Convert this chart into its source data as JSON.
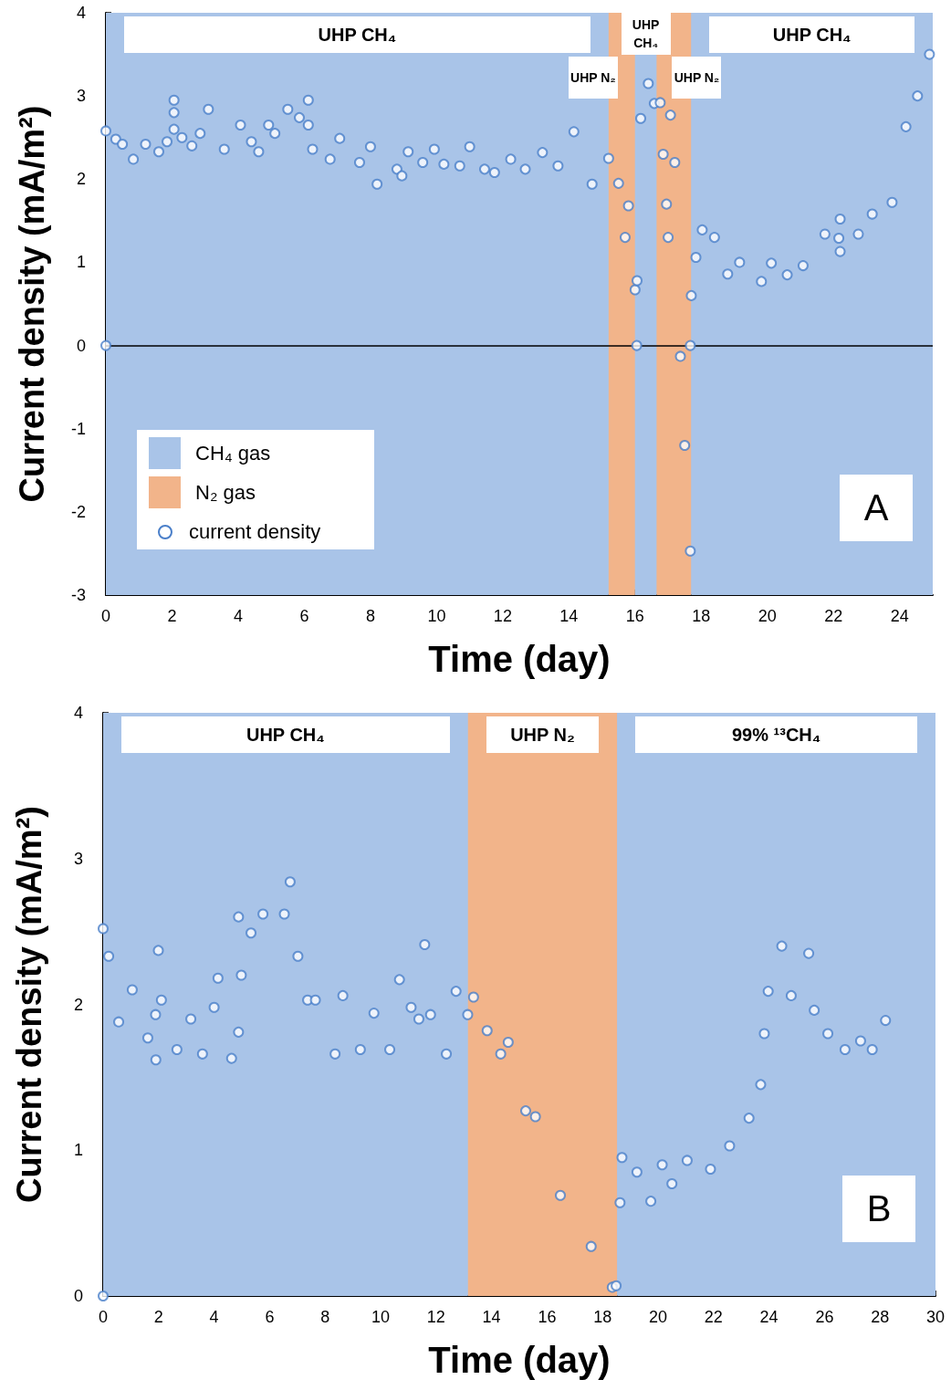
{
  "chart_data": [
    {
      "type": "scatter",
      "xlabel": "Time (day)",
      "ylabel": "Current density (mA/m²)",
      "xlim": [
        0,
        25
      ],
      "xticks": [
        0,
        2,
        4,
        6,
        8,
        10,
        12,
        14,
        16,
        18,
        20,
        22,
        24
      ],
      "ylim": [
        -3,
        4
      ],
      "yticks": [
        -3,
        {
          "value": -2.5,
          "label": null
        },
        -2,
        {
          "value": -1.5,
          "label": null
        },
        -1,
        {
          "value": -0.5,
          "label": null
        },
        0,
        {
          "value": 0.5,
          "label": null
        },
        1,
        {
          "value": 1.5,
          "label": null
        },
        2,
        {
          "value": 2.5,
          "label": null
        },
        3,
        {
          "value": 3.5,
          "label": null
        },
        4
      ],
      "grid": false,
      "legend": "bottom left",
      "marker": "circle",
      "series": [
        {
          "name": "current density",
          "color": "#4a7fc9",
          "x": [
            0,
            0,
            0.3,
            0.5,
            0.83,
            1.2,
            1.6,
            1.85,
            2.06,
            2.06,
            2.06,
            2.3,
            2.6,
            2.85,
            3.1,
            3.58,
            4.07,
            4.4,
            4.62,
            4.92,
            5.11,
            5.5,
            5.85,
            6.12,
            6.12,
            6.25,
            6.78,
            7.07,
            7.67,
            8.0,
            8.2,
            8.8,
            8.95,
            9.14,
            9.58,
            9.93,
            10.22,
            10.7,
            11.0,
            11.45,
            11.75,
            12.24,
            12.68,
            13.2,
            13.67,
            14.15,
            14.7,
            15.2,
            15.5,
            15.8,
            15.7,
            16.0,
            16.05,
            16.06,
            16.17,
            16.4,
            16.58,
            16.76,
            16.85,
            16.95,
            17.0,
            17.07,
            17.2,
            17.37,
            17.5,
            17.67,
            17.67,
            17.7,
            17.84,
            18.03,
            18.4,
            18.8,
            19.16,
            19.82,
            20.12,
            20.6,
            21.08,
            21.74,
            22.16,
            22.2,
            22.2,
            22.75,
            23.17,
            23.77,
            24.19,
            24.54,
            24.9
          ],
          "values": [
            2.58,
            0,
            2.48,
            2.42,
            2.24,
            2.42,
            2.33,
            2.45,
            2.6,
            2.95,
            2.8,
            2.5,
            2.4,
            2.55,
            2.84,
            2.36,
            2.65,
            2.45,
            2.33,
            2.65,
            2.55,
            2.84,
            2.74,
            2.65,
            2.95,
            2.36,
            2.24,
            2.49,
            2.2,
            2.39,
            1.94,
            2.12,
            2.04,
            2.33,
            2.2,
            2.36,
            2.18,
            2.16,
            2.39,
            2.12,
            2.08,
            2.24,
            2.12,
            2.32,
            2.16,
            2.57,
            1.94,
            2.25,
            1.95,
            1.68,
            1.3,
            0.67,
            0,
            0.78,
            2.73,
            3.15,
            2.91,
            2.92,
            2.3,
            1.7,
            1.3,
            2.77,
            2.2,
            -0.13,
            -1.2,
            -2.47,
            0,
            0.6,
            1.06,
            1.39,
            1.3,
            0.86,
            1.0,
            0.77,
            0.99,
            0.85,
            0.96,
            1.34,
            1.29,
            1.52,
            1.13,
            1.34,
            1.58,
            1.72,
            2.63,
            3.0,
            3.5
          ]
        }
      ],
      "bands": [
        {
          "axis": "x",
          "from": 0,
          "to": 15.2,
          "label": "UHP CH₄",
          "color": "#a9c4e8"
        },
        {
          "axis": "x",
          "from": 15.2,
          "to": 16.0,
          "label": "UHP N₂",
          "color": "#f2b48a"
        },
        {
          "axis": "x",
          "from": 16.0,
          "to": 16.65,
          "label": "UHP CH₄",
          "color": "#a9c4e8"
        },
        {
          "axis": "x",
          "from": 16.65,
          "to": 17.7,
          "label": "UHP N₂",
          "color": "#f2b48a"
        },
        {
          "axis": "x",
          "from": 17.7,
          "to": 25,
          "label": "UHP CH₄",
          "color": "#a9c4e8"
        }
      ],
      "ref_lines": [
        {
          "axis": "y",
          "value": 0,
          "color": "#000000"
        }
      ],
      "annotations": [
        "CH₄ gas",
        "N₂ gas",
        "A"
      ]
    },
    {
      "type": "scatter",
      "xlabel": "Time (day)",
      "ylabel": "Current density (mA/m²)",
      "xlim": [
        0,
        30
      ],
      "xticks": [
        0,
        2,
        4,
        6,
        8,
        10,
        12,
        14,
        16,
        18,
        20,
        22,
        24,
        26,
        28,
        30
      ],
      "ylim": [
        0,
        4
      ],
      "yticks": [
        0,
        {
          "value": 0.5,
          "label": null
        },
        1,
        {
          "value": 1.5,
          "label": null
        },
        2,
        {
          "value": 2.5,
          "label": null
        },
        3,
        {
          "value": 3.5,
          "label": null
        },
        4
      ],
      "grid": false,
      "marker": "circle",
      "series": [
        {
          "color": "#4a7fc9",
          "x": [
            0,
            0,
            0.2,
            0.56,
            1.05,
            1.61,
            1.89,
            1.99,
            1.9,
            2.1,
            2.66,
            3.16,
            3.58,
            4.0,
            4.14,
            4.63,
            4.88,
            4.98,
            4.88,
            5.33,
            5.76,
            6.53,
            6.74,
            7.02,
            7.37,
            7.65,
            8.36,
            8.64,
            9.27,
            9.76,
            10.33,
            10.68,
            11.1,
            11.38,
            11.59,
            11.8,
            12.37,
            12.72,
            13.14,
            13.35,
            13.84,
            14.33,
            14.6,
            15.23,
            15.58,
            16.48,
            17.59,
            18.35,
            18.49,
            18.63,
            18.7,
            19.24,
            19.74,
            20.15,
            20.5,
            21.05,
            21.89,
            22.58,
            23.28,
            23.7,
            23.83,
            23.97,
            24.46,
            24.8,
            25.43,
            25.63,
            26.12,
            26.74,
            27.3,
            27.72,
            28.2
          ],
          "values": [
            2.52,
            0,
            2.33,
            1.88,
            2.1,
            1.77,
            1.93,
            2.37,
            1.62,
            2.03,
            1.69,
            1.9,
            1.66,
            1.98,
            2.18,
            1.63,
            1.81,
            2.2,
            2.6,
            2.49,
            2.62,
            2.62,
            2.84,
            2.33,
            2.03,
            2.03,
            1.66,
            2.06,
            1.69,
            1.94,
            1.69,
            2.17,
            1.98,
            1.9,
            2.41,
            1.93,
            1.66,
            2.09,
            1.93,
            2.05,
            1.82,
            1.66,
            1.74,
            1.27,
            1.23,
            0.69,
            0.34,
            0.06,
            0.07,
            0.64,
            0.95,
            0.85,
            0.65,
            0.9,
            0.77,
            0.93,
            0.87,
            1.03,
            1.22,
            1.45,
            1.8,
            2.09,
            2.4,
            2.06,
            2.35,
            1.96,
            1.8,
            1.69,
            1.75,
            1.69,
            1.89
          ]
        }
      ],
      "bands": [
        {
          "axis": "x",
          "from": 0,
          "to": 13.15,
          "label": "UHP CH₄",
          "color": "#a9c4e8"
        },
        {
          "axis": "x",
          "from": 13.15,
          "to": 18.53,
          "label": "UHP N₂",
          "color": "#f2b48a"
        },
        {
          "axis": "x",
          "from": 18.53,
          "to": 30,
          "label": "99% ¹³CH₄",
          "color": "#a9c4e8"
        }
      ],
      "annotations": [
        "B"
      ]
    }
  ]
}
